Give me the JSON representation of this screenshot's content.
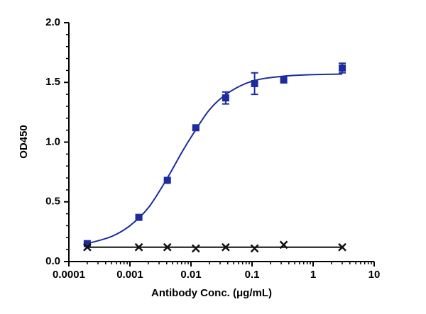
{
  "chart_data": {
    "type": "scatter",
    "x_label": "Antibody Conc. (μg/mL)",
    "y_label": "OD450",
    "x_log": true,
    "minor_ticks": true,
    "xlim": [
      0.0001,
      10
    ],
    "xticks": [
      0.0001,
      0.001,
      0.01,
      0.1,
      1,
      10
    ],
    "ylim": [
      0,
      2
    ],
    "yticks": [
      {
        "value": 0,
        "label": "0.0"
      },
      0.5,
      {
        "value": 1,
        "label": "1.0"
      },
      1.5,
      {
        "value": 2,
        "label": "2.0"
      }
    ],
    "series": [
      {
        "color": "#1c2c9c",
        "marker": "square",
        "x": [
          0.0002,
          0.0014,
          0.0041,
          0.012,
          0.037,
          0.11,
          0.33,
          3
        ],
        "values": [
          0.15,
          0.37,
          0.68,
          1.12,
          1.37,
          1.49,
          1.52,
          1.62
        ],
        "errors": [
          0.01,
          0.01,
          0.01,
          0.01,
          0.05,
          0.09,
          0.01,
          0.04
        ],
        "fit_x": [
          0.0002,
          0.0005,
          0.001,
          0.002,
          0.004,
          0.007,
          0.01,
          0.02,
          0.04,
          0.1,
          0.3,
          1,
          3
        ],
        "fit_values": [
          0.15,
          0.21,
          0.3,
          0.45,
          0.69,
          0.91,
          1.04,
          1.27,
          1.41,
          1.51,
          1.55,
          1.565,
          1.57
        ]
      },
      {
        "color": "#111111",
        "marker": "x",
        "x": [
          0.0002,
          0.0014,
          0.0041,
          0.012,
          0.037,
          0.11,
          0.33,
          3
        ],
        "values": [
          0.12,
          0.12,
          0.12,
          0.11,
          0.12,
          0.11,
          0.14,
          0.12
        ],
        "fit_x": [
          0.0002,
          3
        ],
        "fit_values": [
          0.12,
          0.12
        ]
      }
    ]
  }
}
